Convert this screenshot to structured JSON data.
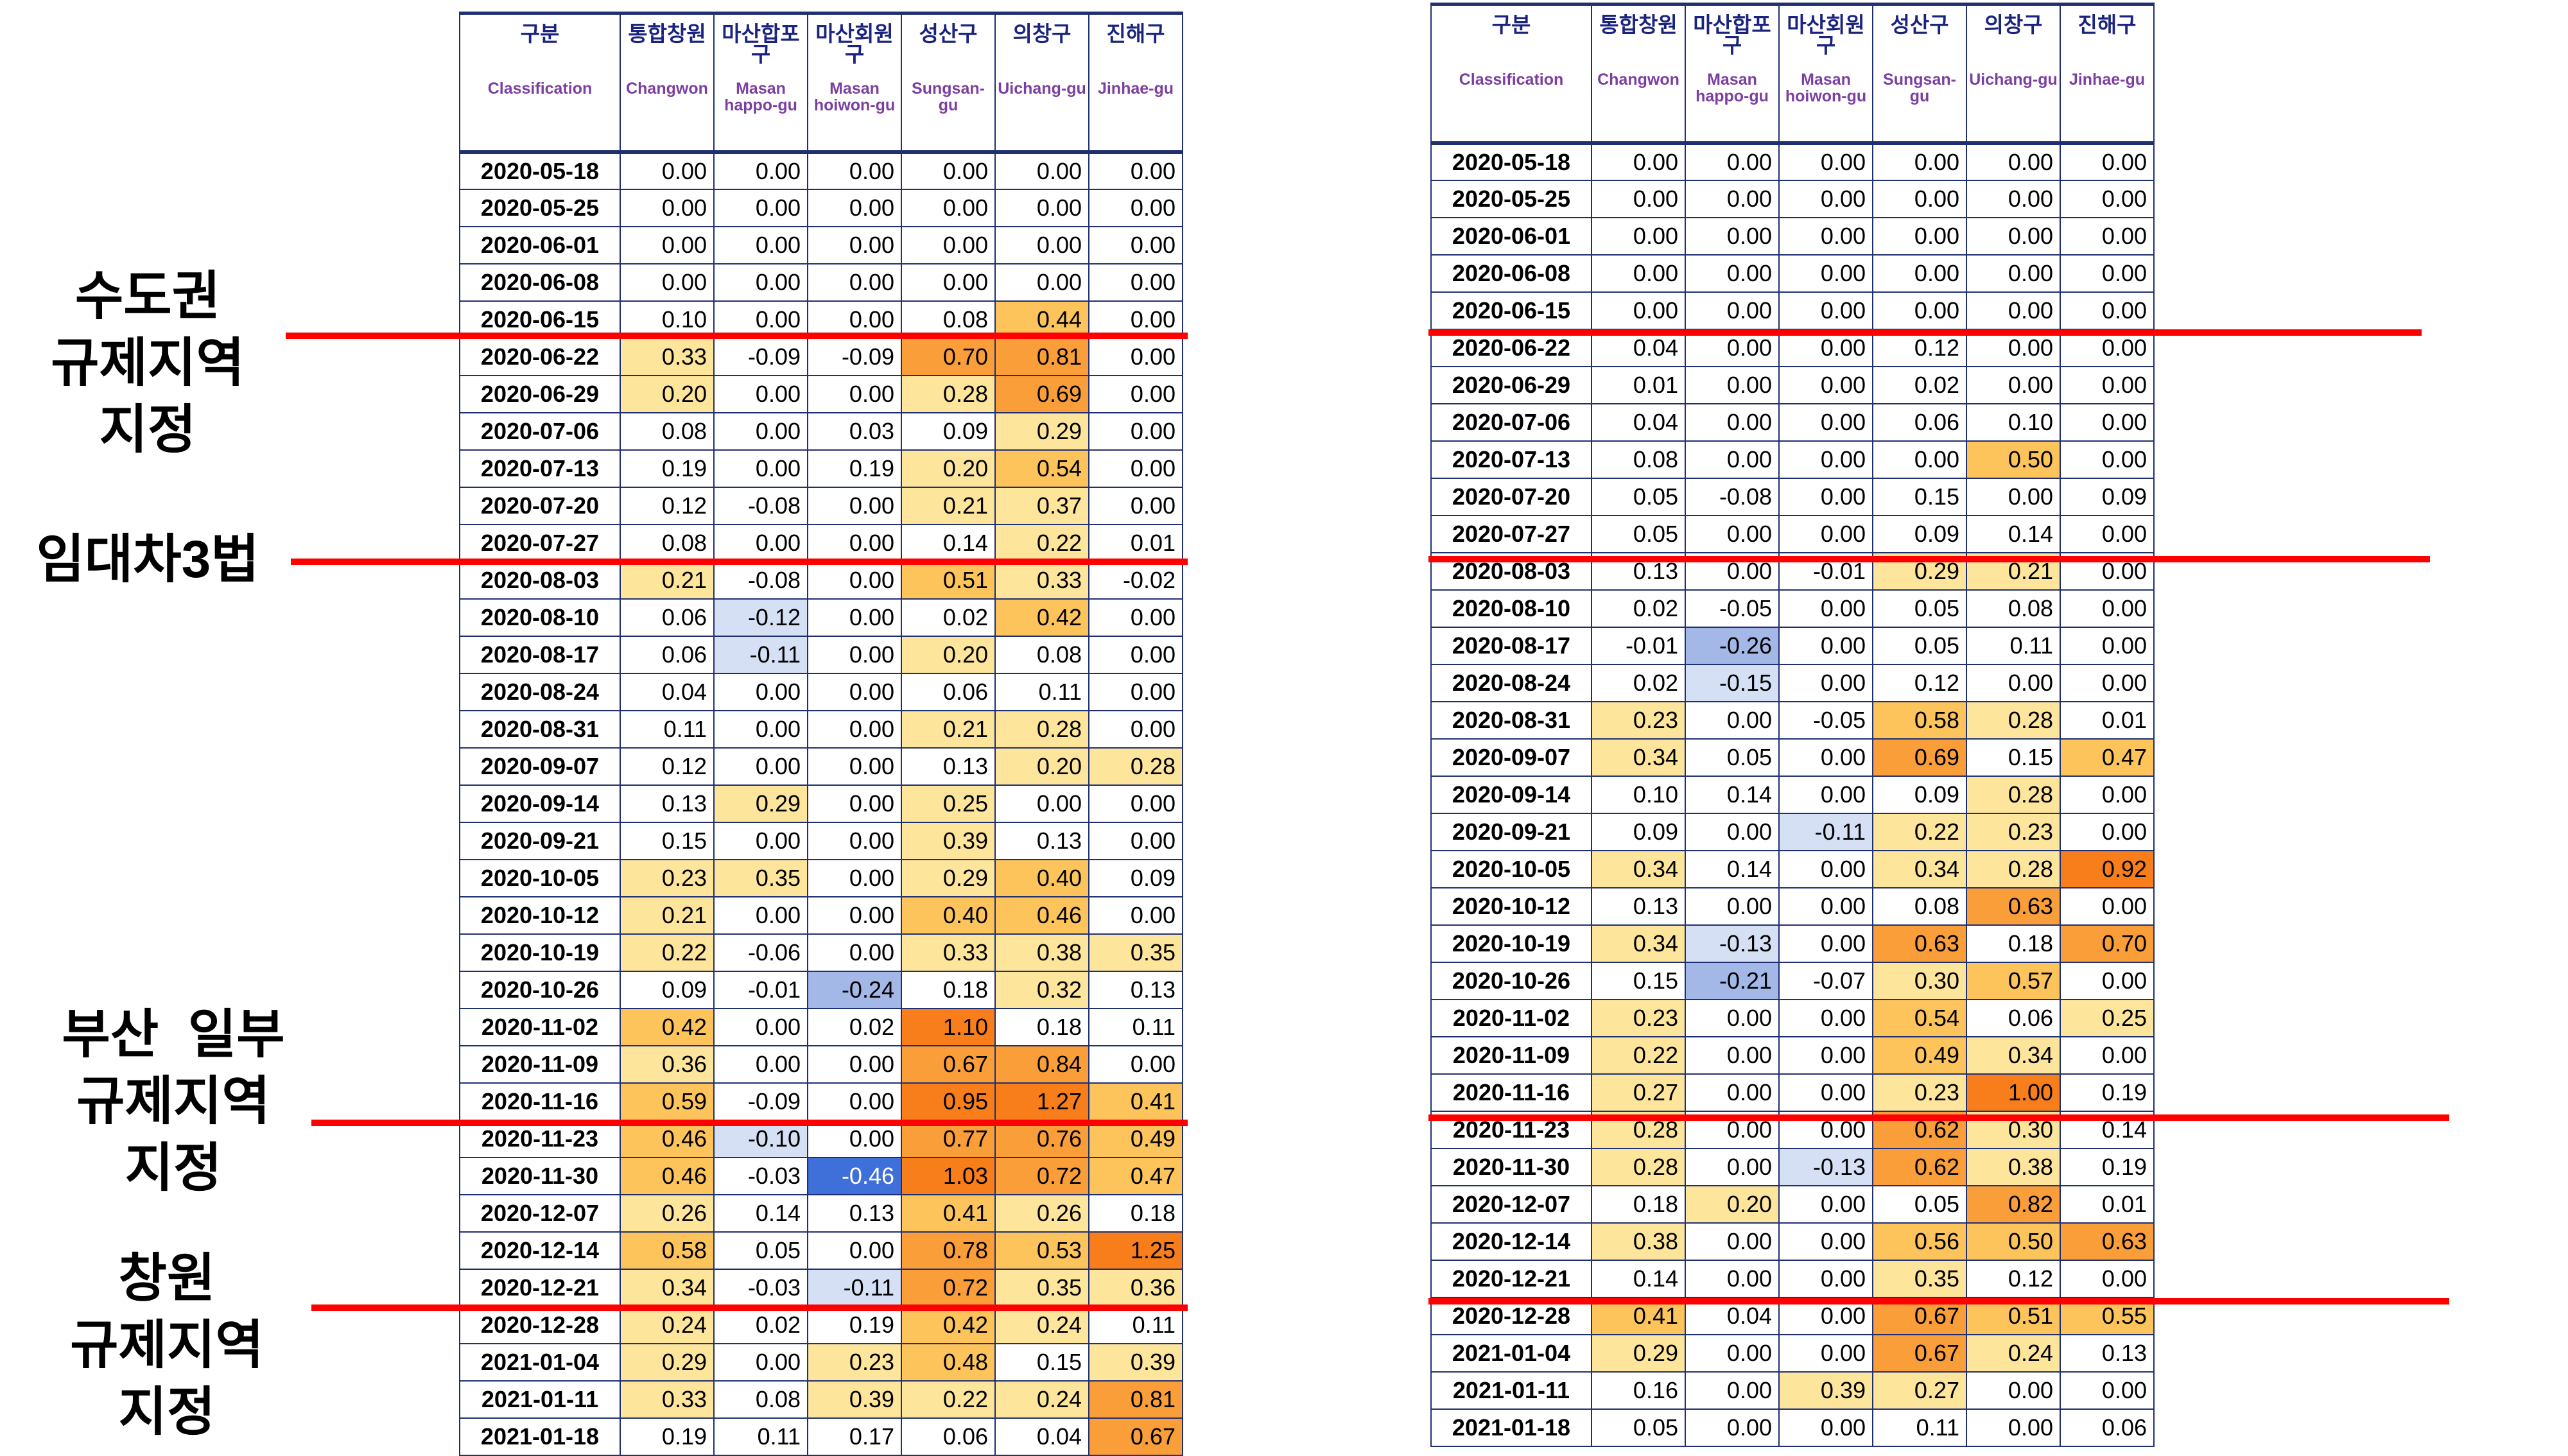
{
  "header": {
    "classification_ko": "구분",
    "classification_en": "Classification",
    "cols": [
      {
        "ko": "통합창원",
        "en": "Changwon"
      },
      {
        "ko": "마산합포구",
        "en": "Masan happo-gu"
      },
      {
        "ko": "마산회원구",
        "en": "Masan hoiwon-gu"
      },
      {
        "ko": "성산구",
        "en": "Sungsan-gu"
      },
      {
        "ko": "의창구",
        "en": "Uichang-gu"
      },
      {
        "ko": "진해구",
        "en": "Jinhae-gu"
      }
    ]
  },
  "annotations": [
    {
      "text": "수도권\n규제지역\n지정"
    },
    {
      "text": "임대차3법"
    },
    {
      "text": "부산  일부\n규제지역\n지정"
    },
    {
      "text": "창원\n규제지역\n지정"
    }
  ],
  "colors": {
    "line": "#ff0000",
    "border": "#1f2f70",
    "header_ko": "#1a237e",
    "header_en": "#7b3fa0"
  },
  "dates": [
    "2020-05-18",
    "2020-05-25",
    "2020-06-01",
    "2020-06-08",
    "2020-06-15",
    "2020-06-22",
    "2020-06-29",
    "2020-07-06",
    "2020-07-13",
    "2020-07-20",
    "2020-07-27",
    "2020-08-03",
    "2020-08-10",
    "2020-08-17",
    "2020-08-24",
    "2020-08-31",
    "2020-09-07",
    "2020-09-14",
    "2020-09-21",
    "2020-10-05",
    "2020-10-12",
    "2020-10-19",
    "2020-10-26",
    "2020-11-02",
    "2020-11-09",
    "2020-11-16",
    "2020-11-23",
    "2020-11-30",
    "2020-12-07",
    "2020-12-14",
    "2020-12-21",
    "2020-12-28",
    "2021-01-04",
    "2021-01-11",
    "2021-01-18"
  ],
  "left_table": {
    "rows": [
      [
        "0.00",
        "0.00",
        "0.00",
        "0.00",
        "0.00",
        "0.00"
      ],
      [
        "0.00",
        "0.00",
        "0.00",
        "0.00",
        "0.00",
        "0.00"
      ],
      [
        "0.00",
        "0.00",
        "0.00",
        "0.00",
        "0.00",
        "0.00"
      ],
      [
        "0.00",
        "0.00",
        "0.00",
        "0.00",
        "0.00",
        "0.00"
      ],
      [
        "0.10",
        "0.00",
        "0.00",
        "0.08",
        "0.44",
        "0.00"
      ],
      [
        "0.33",
        "-0.09",
        "-0.09",
        "0.70",
        "0.81",
        "0.00"
      ],
      [
        "0.20",
        "0.00",
        "0.00",
        "0.28",
        "0.69",
        "0.00"
      ],
      [
        "0.08",
        "0.00",
        "0.03",
        "0.09",
        "0.29",
        "0.00"
      ],
      [
        "0.19",
        "0.00",
        "0.19",
        "0.20",
        "0.54",
        "0.00"
      ],
      [
        "0.12",
        "-0.08",
        "0.00",
        "0.21",
        "0.37",
        "0.00"
      ],
      [
        "0.08",
        "0.00",
        "0.00",
        "0.14",
        "0.22",
        "0.01"
      ],
      [
        "0.21",
        "-0.08",
        "0.00",
        "0.51",
        "0.33",
        "-0.02"
      ],
      [
        "0.06",
        "-0.12",
        "0.00",
        "0.02",
        "0.42",
        "0.00"
      ],
      [
        "0.06",
        "-0.11",
        "0.00",
        "0.20",
        "0.08",
        "0.00"
      ],
      [
        "0.04",
        "0.00",
        "0.00",
        "0.06",
        "0.11",
        "0.00"
      ],
      [
        "0.11",
        "0.00",
        "0.00",
        "0.21",
        "0.28",
        "0.00"
      ],
      [
        "0.12",
        "0.00",
        "0.00",
        "0.13",
        "0.20",
        "0.28"
      ],
      [
        "0.13",
        "0.29",
        "0.00",
        "0.25",
        "0.00",
        "0.00"
      ],
      [
        "0.15",
        "0.00",
        "0.00",
        "0.39",
        "0.13",
        "0.00"
      ],
      [
        "0.23",
        "0.35",
        "0.00",
        "0.29",
        "0.40",
        "0.09"
      ],
      [
        "0.21",
        "0.00",
        "0.00",
        "0.40",
        "0.46",
        "0.00"
      ],
      [
        "0.22",
        "-0.06",
        "0.00",
        "0.33",
        "0.38",
        "0.35"
      ],
      [
        "0.09",
        "-0.01",
        "-0.24",
        "0.18",
        "0.32",
        "0.13"
      ],
      [
        "0.42",
        "0.00",
        "0.02",
        "1.10",
        "0.18",
        "0.11"
      ],
      [
        "0.36",
        "0.00",
        "0.00",
        "0.67",
        "0.84",
        "0.00"
      ],
      [
        "0.59",
        "-0.09",
        "0.00",
        "0.95",
        "1.27",
        "0.41"
      ],
      [
        "0.46",
        "-0.10",
        "0.00",
        "0.77",
        "0.76",
        "0.49"
      ],
      [
        "0.46",
        "-0.03",
        "-0.46",
        "1.03",
        "0.72",
        "0.47"
      ],
      [
        "0.26",
        "0.14",
        "0.13",
        "0.41",
        "0.26",
        "0.18"
      ],
      [
        "0.58",
        "0.05",
        "0.00",
        "0.78",
        "0.53",
        "1.25"
      ],
      [
        "0.34",
        "-0.03",
        "-0.11",
        "0.72",
        "0.35",
        "0.36"
      ],
      [
        "0.24",
        "0.02",
        "0.19",
        "0.42",
        "0.24",
        "0.11"
      ],
      [
        "0.29",
        "0.00",
        "0.23",
        "0.48",
        "0.15",
        "0.39"
      ],
      [
        "0.33",
        "0.08",
        "0.39",
        "0.22",
        "0.24",
        "0.81"
      ],
      [
        "0.19",
        "0.11",
        "0.17",
        "0.06",
        "0.04",
        "0.67"
      ]
    ]
  },
  "right_table": {
    "rows": [
      [
        "0.00",
        "0.00",
        "0.00",
        "0.00",
        "0.00",
        "0.00"
      ],
      [
        "0.00",
        "0.00",
        "0.00",
        "0.00",
        "0.00",
        "0.00"
      ],
      [
        "0.00",
        "0.00",
        "0.00",
        "0.00",
        "0.00",
        "0.00"
      ],
      [
        "0.00",
        "0.00",
        "0.00",
        "0.00",
        "0.00",
        "0.00"
      ],
      [
        "0.00",
        "0.00",
        "0.00",
        "0.00",
        "0.00",
        "0.00"
      ],
      [
        "0.04",
        "0.00",
        "0.00",
        "0.12",
        "0.00",
        "0.00"
      ],
      [
        "0.01",
        "0.00",
        "0.00",
        "0.02",
        "0.00",
        "0.00"
      ],
      [
        "0.04",
        "0.00",
        "0.00",
        "0.06",
        "0.10",
        "0.00"
      ],
      [
        "0.08",
        "0.00",
        "0.00",
        "0.00",
        "0.50",
        "0.00"
      ],
      [
        "0.05",
        "-0.08",
        "0.00",
        "0.15",
        "0.00",
        "0.09"
      ],
      [
        "0.05",
        "0.00",
        "0.00",
        "0.09",
        "0.14",
        "0.00"
      ],
      [
        "0.13",
        "0.00",
        "-0.01",
        "0.29",
        "0.21",
        "0.00"
      ],
      [
        "0.02",
        "-0.05",
        "0.00",
        "0.05",
        "0.08",
        "0.00"
      ],
      [
        "-0.01",
        "-0.26",
        "0.00",
        "0.05",
        "0.11",
        "0.00"
      ],
      [
        "0.02",
        "-0.15",
        "0.00",
        "0.12",
        "0.00",
        "0.00"
      ],
      [
        "0.23",
        "0.00",
        "-0.05",
        "0.58",
        "0.28",
        "0.01"
      ],
      [
        "0.34",
        "0.05",
        "0.00",
        "0.69",
        "0.15",
        "0.47"
      ],
      [
        "0.10",
        "0.14",
        "0.00",
        "0.09",
        "0.28",
        "0.00"
      ],
      [
        "0.09",
        "0.00",
        "-0.11",
        "0.22",
        "0.23",
        "0.00"
      ],
      [
        "0.34",
        "0.14",
        "0.00",
        "0.34",
        "0.28",
        "0.92"
      ],
      [
        "0.13",
        "0.00",
        "0.00",
        "0.08",
        "0.63",
        "0.00"
      ],
      [
        "0.34",
        "-0.13",
        "0.00",
        "0.63",
        "0.18",
        "0.70"
      ],
      [
        "0.15",
        "-0.21",
        "-0.07",
        "0.30",
        "0.57",
        "0.00"
      ],
      [
        "0.23",
        "0.00",
        "0.00",
        "0.54",
        "0.06",
        "0.25"
      ],
      [
        "0.22",
        "0.00",
        "0.00",
        "0.49",
        "0.34",
        "0.00"
      ],
      [
        "0.27",
        "0.00",
        "0.00",
        "0.23",
        "1.00",
        "0.19"
      ],
      [
        "0.28",
        "0.00",
        "0.00",
        "0.62",
        "0.30",
        "0.14"
      ],
      [
        "0.28",
        "0.00",
        "-0.13",
        "0.62",
        "0.38",
        "0.19"
      ],
      [
        "0.18",
        "0.20",
        "0.00",
        "0.05",
        "0.82",
        "0.01"
      ],
      [
        "0.38",
        "0.00",
        "0.00",
        "0.56",
        "0.50",
        "0.63"
      ],
      [
        "0.14",
        "0.00",
        "0.00",
        "0.35",
        "0.12",
        "0.00"
      ],
      [
        "0.41",
        "0.04",
        "0.00",
        "0.67",
        "0.51",
        "0.55"
      ],
      [
        "0.29",
        "0.00",
        "0.00",
        "0.67",
        "0.24",
        "0.13"
      ],
      [
        "0.16",
        "0.00",
        "0.39",
        "0.27",
        "0.00",
        "0.00"
      ],
      [
        "0.05",
        "0.00",
        "0.00",
        "0.11",
        "0.00",
        "0.06"
      ]
    ]
  }
}
